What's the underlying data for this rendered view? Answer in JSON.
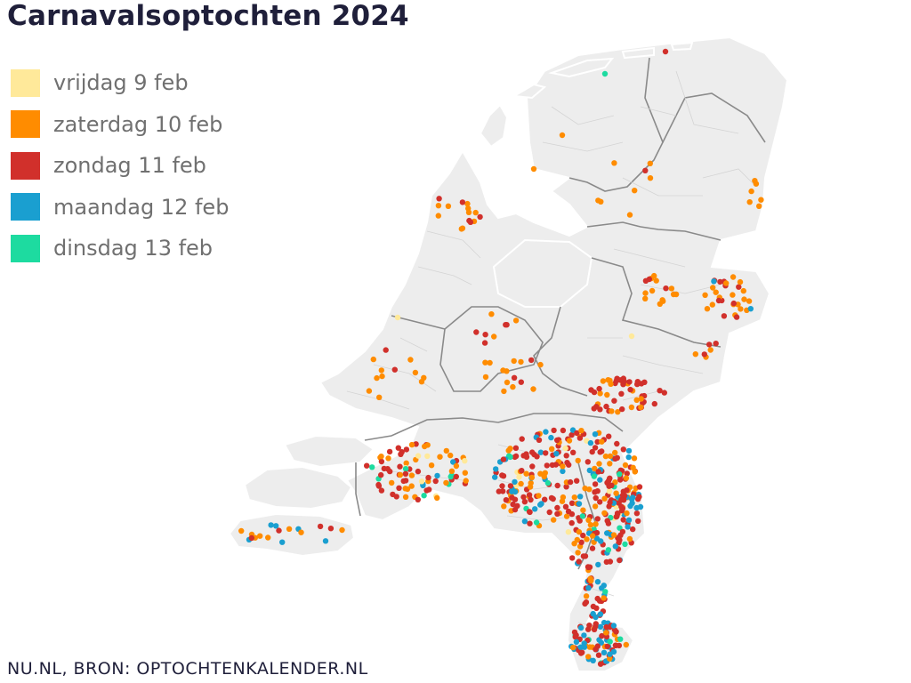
{
  "title": "Carnavalsoptochten 2024",
  "legend": [
    {
      "label": "vrijdag 9 feb",
      "color": "#ffe99a"
    },
    {
      "label": "zaterdag 10 feb",
      "color": "#ff8c00"
    },
    {
      "label": "zondag 11 feb",
      "color": "#d1302b"
    },
    {
      "label": "maandag 12 feb",
      "color": "#1a9fd0"
    },
    {
      "label": "dinsdag 13 feb",
      "color": "#1ddba0"
    }
  ],
  "source": "NU.NL, BRON: OPTOCHTENKALENDER.NL",
  "colors": {
    "land": "#ededed",
    "province_border": "#8a8a8a",
    "municipality_border": "#d2d2d2"
  }
}
